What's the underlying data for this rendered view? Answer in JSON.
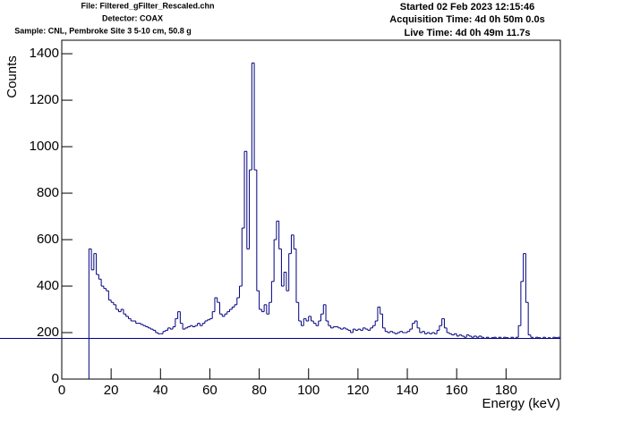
{
  "chart_data": {
    "type": "histogram",
    "header_left": [
      "File: Filtered_gFilter_Rescaled.chn",
      "Detector: COAX",
      "Sample: CNL, Pembroke Site 3 5-10 cm, 50.8 g"
    ],
    "header_right": [
      "Started 02 Feb 2023 12:15:46",
      "Acquisition Time: 4d 0h 50m 0.0s",
      "Live Time: 4d 0h 49m 11.7s"
    ],
    "x_label": "Energy (keV)",
    "y_label": "Counts",
    "color": "#000080",
    "xlim": [
      0,
      202
    ],
    "ylim": [
      0,
      1458
    ],
    "xticks": [
      0,
      20,
      40,
      60,
      80,
      100,
      120,
      140,
      160,
      180
    ],
    "yticks": [
      0,
      200,
      400,
      600,
      800,
      1000,
      1200,
      1400
    ],
    "bins": [
      11,
      12,
      13,
      14,
      15,
      16,
      17,
      18,
      19,
      20,
      21,
      22,
      23,
      24,
      25,
      26,
      27,
      28,
      29,
      30,
      31,
      32,
      33,
      34,
      35,
      36,
      37,
      38,
      39,
      40,
      41,
      42,
      43,
      44,
      45,
      46,
      47,
      48,
      49,
      50,
      51,
      52,
      53,
      54,
      55,
      56,
      57,
      58,
      59,
      60,
      61,
      62,
      63,
      64,
      65,
      66,
      67,
      68,
      69,
      70,
      71,
      72,
      73,
      74,
      75,
      76,
      77,
      78,
      79,
      80,
      81,
      82,
      83,
      84,
      85,
      86,
      87,
      88,
      89,
      90,
      91,
      92,
      93,
      94,
      95,
      96,
      97,
      98,
      99,
      100,
      101,
      102,
      103,
      104,
      105,
      106,
      107,
      108,
      109,
      110,
      111,
      112,
      113,
      114,
      115,
      116,
      117,
      118,
      119,
      120,
      121,
      122,
      123,
      124,
      125,
      126,
      127,
      128,
      129,
      130,
      131,
      132,
      133,
      134,
      135,
      136,
      137,
      138,
      139,
      140,
      141,
      142,
      143,
      144,
      145,
      146,
      147,
      148,
      149,
      150,
      151,
      152,
      153,
      154,
      155,
      156,
      157,
      158,
      159,
      160,
      161,
      162,
      163,
      164,
      165,
      166,
      167,
      168,
      169,
      170,
      171,
      172,
      173,
      174,
      175,
      176,
      177,
      178,
      179,
      180,
      181,
      182,
      183,
      184,
      185,
      186,
      187,
      188,
      189,
      190,
      191,
      192,
      193,
      194,
      195,
      196,
      197,
      198,
      199,
      200,
      201,
      202
    ],
    "values": [
      560,
      470,
      540,
      450,
      430,
      400,
      390,
      380,
      340,
      330,
      320,
      300,
      290,
      300,
      280,
      270,
      260,
      250,
      250,
      240,
      240,
      235,
      230,
      225,
      220,
      215,
      210,
      200,
      195,
      195,
      205,
      210,
      220,
      215,
      225,
      260,
      290,
      240,
      215,
      220,
      225,
      230,
      225,
      230,
      240,
      230,
      240,
      250,
      255,
      260,
      290,
      350,
      330,
      280,
      270,
      280,
      290,
      300,
      310,
      320,
      350,
      400,
      650,
      980,
      560,
      900,
      1360,
      900,
      380,
      300,
      290,
      320,
      280,
      330,
      420,
      600,
      680,
      560,
      400,
      460,
      380,
      540,
      620,
      560,
      330,
      250,
      230,
      260,
      250,
      270,
      250,
      240,
      230,
      250,
      280,
      320,
      250,
      230,
      220,
      225,
      225,
      220,
      215,
      220,
      215,
      210,
      200,
      215,
      210,
      215,
      210,
      220,
      215,
      210,
      220,
      230,
      250,
      310,
      280,
      220,
      205,
      200,
      205,
      200,
      195,
      200,
      205,
      200,
      200,
      205,
      215,
      240,
      250,
      220,
      200,
      205,
      195,
      200,
      195,
      200,
      195,
      210,
      230,
      260,
      220,
      200,
      195,
      190,
      195,
      185,
      190,
      185,
      180,
      190,
      185,
      180,
      185,
      180,
      185,
      180,
      175,
      180,
      175,
      178,
      180,
      175,
      180,
      175,
      180,
      178,
      175,
      180,
      175,
      180,
      230,
      420,
      540,
      330,
      190,
      180,
      175,
      180,
      178,
      175,
      180,
      175,
      178,
      175,
      180,
      178,
      180,
      175
    ]
  }
}
